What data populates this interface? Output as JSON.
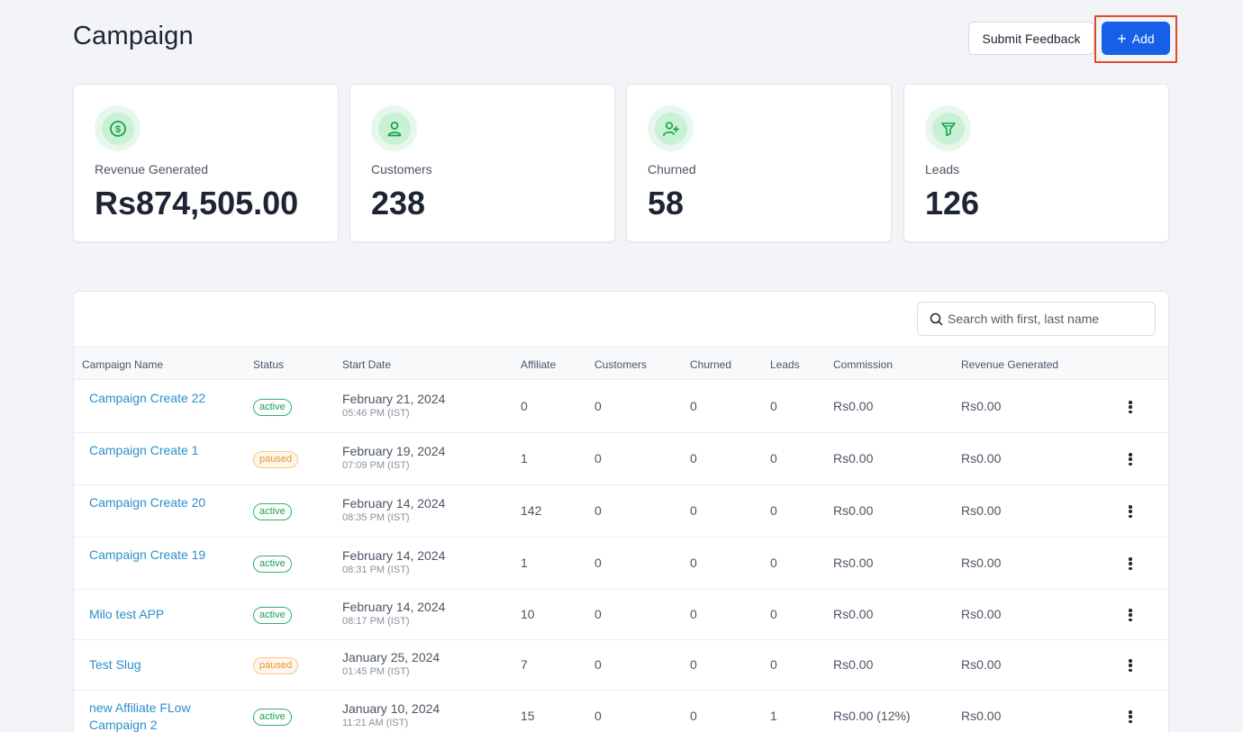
{
  "header": {
    "title": "Campaign",
    "feedback_label": "Submit Feedback",
    "add_label": "Add"
  },
  "stats": [
    {
      "label": "Revenue Generated",
      "value": "Rs874,505.00",
      "icon": "dollar-icon"
    },
    {
      "label": "Customers",
      "value": "238",
      "icon": "user-icon"
    },
    {
      "label": "Churned",
      "value": "58",
      "icon": "user-plus-icon"
    },
    {
      "label": "Leads",
      "value": "126",
      "icon": "funnel-icon"
    }
  ],
  "search": {
    "placeholder": "Search with first, last name"
  },
  "table": {
    "columns": [
      "Campaign Name",
      "Status",
      "Start Date",
      "Affiliate",
      "Customers",
      "Churned",
      "Leads",
      "Commission",
      "Revenue Generated"
    ],
    "rows": [
      {
        "name": "Campaign Create 22",
        "status": "active",
        "date": "February 21, 2024",
        "time": "05:46 PM (IST)",
        "affiliate": "0",
        "customers": "0",
        "churned": "0",
        "leads": "0",
        "commission": "Rs0.00",
        "revenue": "Rs0.00"
      },
      {
        "name": "Campaign Create 1",
        "status": "paused",
        "date": "February 19, 2024",
        "time": "07:09 PM (IST)",
        "affiliate": "1",
        "customers": "0",
        "churned": "0",
        "leads": "0",
        "commission": "Rs0.00",
        "revenue": "Rs0.00"
      },
      {
        "name": "Campaign Create 20",
        "status": "active",
        "date": "February 14, 2024",
        "time": "08:35 PM (IST)",
        "affiliate": "142",
        "customers": "0",
        "churned": "0",
        "leads": "0",
        "commission": "Rs0.00",
        "revenue": "Rs0.00"
      },
      {
        "name": "Campaign Create 19",
        "status": "active",
        "date": "February 14, 2024",
        "time": "08:31 PM (IST)",
        "affiliate": "1",
        "customers": "0",
        "churned": "0",
        "leads": "0",
        "commission": "Rs0.00",
        "revenue": "Rs0.00"
      },
      {
        "name": "Milo test APP",
        "status": "active",
        "date": "February 14, 2024",
        "time": "08:17 PM (IST)",
        "affiliate": "10",
        "customers": "0",
        "churned": "0",
        "leads": "0",
        "commission": "Rs0.00",
        "revenue": "Rs0.00"
      },
      {
        "name": "Test Slug",
        "status": "paused",
        "date": "January 25, 2024",
        "time": "01:45 PM (IST)",
        "affiliate": "7",
        "customers": "0",
        "churned": "0",
        "leads": "0",
        "commission": "Rs0.00",
        "revenue": "Rs0.00"
      },
      {
        "name": "new Affiliate FLow Campaign 2",
        "status": "active",
        "date": "January 10, 2024",
        "time": "11:21 AM (IST)",
        "affiliate": "15",
        "customers": "0",
        "churned": "0",
        "leads": "1",
        "commission": "Rs0.00 (12%)",
        "revenue": "Rs0.00"
      }
    ]
  },
  "colors": {
    "accent": "#1660e8",
    "link": "#2b8fcb",
    "active": "#15a34a",
    "paused": "#e29a35",
    "highlight": "#e0492c",
    "icon_green": "#22c55e"
  }
}
